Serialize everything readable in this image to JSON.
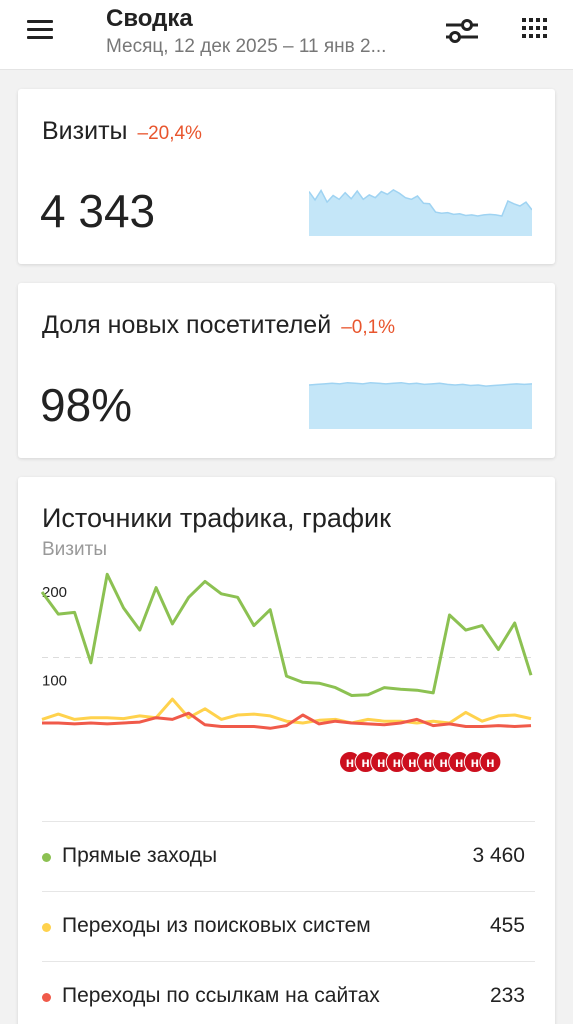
{
  "header": {
    "title": "Сводка",
    "subtitle": "Месяц, 12 дек 2025 – 11 янв 2...",
    "icons": [
      "menu-icon",
      "filter-icon",
      "grid-icon"
    ]
  },
  "visits_card": {
    "label": "Визиты",
    "delta": "–20,4%",
    "value": "4 343",
    "sparkline": [
      150,
      135,
      152,
      131,
      143,
      136,
      148,
      137,
      151,
      136,
      144,
      139,
      150,
      145,
      153,
      147,
      139,
      136,
      142,
      129,
      128,
      113,
      111,
      112,
      109,
      110,
      107,
      108,
      106,
      108,
      109,
      108,
      106,
      133,
      128,
      124,
      131,
      117
    ]
  },
  "new_visitors_card": {
    "label": "Доля новых посетителей",
    "delta": "–0,1%",
    "value": "98%",
    "sparkline": [
      97.8,
      97.9,
      98.0,
      98.1,
      98.0,
      98.2,
      98.1,
      98.0,
      98.2,
      98.1,
      98.0,
      98.1,
      98.2,
      98.0,
      98.1,
      97.9,
      98.0,
      98.1,
      97.9,
      97.8,
      97.9,
      97.7,
      97.8,
      97.6,
      97.7,
      97.8,
      97.9,
      98.0,
      97.9,
      98.0
    ]
  },
  "traffic_chart": {
    "title": "Источники трафика, график",
    "subtitle": "Визиты",
    "marker_label": "н",
    "colors": {
      "direct": "#8cc152",
      "search": "#ffd24d",
      "links": "#f05a4a",
      "marker": "#cc0f1e"
    }
  },
  "chart_data": {
    "type": "line",
    "y_ticks": [
      "200",
      "100"
    ],
    "ylim": [
      0,
      230
    ],
    "series": [
      {
        "name": "Прямые заходы",
        "total": "3 460",
        "color": "#8cc152",
        "values": [
          200,
          175,
          177,
          120,
          220,
          182,
          157,
          205,
          164,
          194,
          212,
          198,
          194,
          162,
          180,
          105,
          98,
          97,
          92,
          83,
          84,
          92,
          90,
          89,
          86,
          174,
          157,
          162,
          135,
          165,
          106
        ]
      },
      {
        "name": "Переходы из поисковых систем",
        "total": "455",
        "color": "#ffd24d",
        "values": [
          56,
          62,
          56,
          58,
          58,
          57,
          60,
          58,
          79,
          58,
          68,
          56,
          61,
          62,
          60,
          54,
          52,
          55,
          56,
          52,
          56,
          54,
          54,
          52,
          54,
          52,
          64,
          54,
          60,
          61,
          57
        ]
      },
      {
        "name": "Переходы по ссылкам на сайтах",
        "total": "233",
        "color": "#f05a4a",
        "values": [
          52,
          52,
          51,
          52,
          51,
          52,
          53,
          58,
          56,
          63,
          50,
          48,
          48,
          48,
          46,
          49,
          61,
          51,
          54,
          52,
          51,
          50,
          52,
          56,
          49,
          51,
          48,
          48,
          49,
          48,
          49
        ]
      }
    ],
    "markers_count": 10,
    "grid": true
  }
}
